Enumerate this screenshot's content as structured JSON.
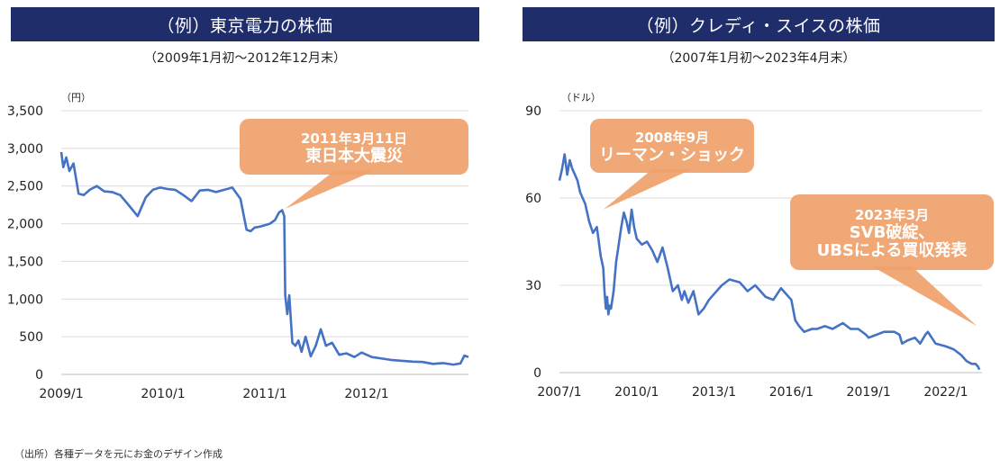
{
  "source_note": "（出所）各種データを元にお金のデザイン作成",
  "chart_data": [
    {
      "type": "line",
      "title": "（例）東京電力の株価",
      "subtitle": "（2009年1月初～2012年12月末）",
      "ylabel": "（円）",
      "xlabel": "",
      "ylim": [
        0,
        3500
      ],
      "yticks": [
        0,
        500,
        1000,
        1500,
        2000,
        2500,
        3000,
        3500
      ],
      "ytick_labels": [
        "0",
        "500",
        "1,000",
        "1,500",
        "2,000",
        "2,500",
        "3,000",
        "3,500"
      ],
      "xlim": [
        2009.0,
        2013.0
      ],
      "xticks": [
        2009.0,
        2010.0,
        2011.0,
        2012.0
      ],
      "xtick_labels": [
        "2009/1",
        "2010/1",
        "2011/1",
        "2012/1"
      ],
      "grid": "horizontal",
      "color": "#4472c4",
      "series": [
        {
          "name": "東京電力",
          "x": [
            2009.0,
            2009.02,
            2009.05,
            2009.08,
            2009.12,
            2009.17,
            2009.22,
            2009.28,
            2009.35,
            2009.42,
            2009.5,
            2009.58,
            2009.66,
            2009.75,
            2009.83,
            2009.9,
            2009.97,
            2010.05,
            2010.12,
            2010.2,
            2010.28,
            2010.36,
            2010.44,
            2010.52,
            2010.6,
            2010.68,
            2010.76,
            2010.82,
            2010.86,
            2010.9,
            2010.95,
            2011.0,
            2011.05,
            2011.1,
            2011.14,
            2011.17,
            2011.19,
            2011.2,
            2011.22,
            2011.24,
            2011.27,
            2011.3,
            2011.33,
            2011.36,
            2011.4,
            2011.45,
            2011.5,
            2011.55,
            2011.6,
            2011.66,
            2011.73,
            2011.8,
            2011.88,
            2011.95,
            2012.05,
            2012.15,
            2012.25,
            2012.35,
            2012.45,
            2012.55,
            2012.65,
            2012.75,
            2012.85,
            2012.92,
            2012.96,
            2013.0
          ],
          "values": [
            2950,
            2750,
            2880,
            2700,
            2800,
            2400,
            2380,
            2450,
            2500,
            2430,
            2420,
            2380,
            2250,
            2100,
            2350,
            2450,
            2480,
            2460,
            2450,
            2380,
            2300,
            2440,
            2450,
            2420,
            2450,
            2480,
            2330,
            1920,
            1900,
            1950,
            1960,
            1980,
            2000,
            2050,
            2150,
            2180,
            2100,
            1050,
            800,
            1050,
            420,
            380,
            450,
            300,
            500,
            240,
            380,
            600,
            380,
            420,
            260,
            280,
            230,
            290,
            230,
            210,
            190,
            180,
            170,
            165,
            140,
            150,
            130,
            145,
            250,
            230
          ]
        }
      ],
      "annotations": [
        {
          "text": [
            "2011年3月11日",
            "東日本大震災"
          ],
          "target_x": 2011.2,
          "target_y": 2200
        }
      ]
    },
    {
      "type": "line",
      "title": "（例）クレディ・スイスの株価",
      "subtitle": "（2007年1月初～2023年4月末）",
      "ylabel": "（ドル）",
      "xlabel": "",
      "ylim": [
        0,
        90
      ],
      "yticks": [
        0,
        30,
        60,
        90
      ],
      "ytick_labels": [
        "0",
        "30",
        "60",
        "90"
      ],
      "xlim": [
        2007.0,
        2023.4
      ],
      "xticks": [
        2007.0,
        2010.0,
        2013.0,
        2016.0,
        2019.0,
        2022.0
      ],
      "xtick_labels": [
        "2007/1",
        "2010/1",
        "2013/1",
        "2016/1",
        "2019/1",
        "2022/1"
      ],
      "grid": "horizontal",
      "color": "#4472c4",
      "series": [
        {
          "name": "クレディ・スイス",
          "x": [
            2007.0,
            2007.1,
            2007.2,
            2007.3,
            2007.4,
            2007.5,
            2007.6,
            2007.7,
            2007.8,
            2007.9,
            2008.0,
            2008.15,
            2008.3,
            2008.45,
            2008.6,
            2008.7,
            2008.75,
            2008.8,
            2008.85,
            2008.9,
            2008.95,
            2009.0,
            2009.1,
            2009.2,
            2009.3,
            2009.4,
            2009.5,
            2009.6,
            2009.7,
            2009.8,
            2009.9,
            2010.0,
            2010.2,
            2010.4,
            2010.6,
            2010.8,
            2011.0,
            2011.2,
            2011.4,
            2011.6,
            2011.75,
            2011.85,
            2012.0,
            2012.2,
            2012.4,
            2012.6,
            2012.8,
            2013.0,
            2013.3,
            2013.6,
            2014.0,
            2014.3,
            2014.6,
            2015.0,
            2015.3,
            2015.6,
            2015.8,
            2016.0,
            2016.15,
            2016.3,
            2016.5,
            2016.8,
            2017.0,
            2017.3,
            2017.6,
            2018.0,
            2018.3,
            2018.6,
            2018.9,
            2019.0,
            2019.3,
            2019.6,
            2020.0,
            2020.2,
            2020.3,
            2020.5,
            2020.8,
            2021.0,
            2021.2,
            2021.3,
            2021.6,
            2022.0,
            2022.3,
            2022.6,
            2022.8,
            2023.0,
            2023.15,
            2023.25,
            2023.3
          ],
          "values": [
            66,
            70,
            75,
            68,
            73,
            70,
            68,
            66,
            62,
            60,
            58,
            52,
            48,
            50,
            40,
            36,
            28,
            22,
            26,
            20,
            23,
            22,
            28,
            38,
            44,
            50,
            55,
            52,
            48,
            56,
            50,
            46,
            44,
            45,
            42,
            38,
            43,
            36,
            28,
            30,
            25,
            28,
            24,
            28,
            20,
            22,
            25,
            27,
            30,
            32,
            31,
            28,
            30,
            26,
            25,
            29,
            27,
            25,
            18,
            16,
            14,
            15,
            15,
            16,
            15,
            17,
            15,
            15,
            13,
            12,
            13,
            14,
            14,
            13,
            10,
            11,
            12,
            10,
            13,
            14,
            10,
            9,
            8,
            6,
            4,
            3,
            3,
            2,
            1
          ]
        }
      ],
      "annotations": [
        {
          "text": [
            "2008年9月",
            "リーマン・ショック"
          ],
          "target_x": 2008.7,
          "target_y": 56
        },
        {
          "text": [
            "2023年3月",
            "SVB破綻、",
            "UBSによる買収発表"
          ],
          "target_x": 2023.2,
          "target_y": 16
        }
      ]
    }
  ]
}
